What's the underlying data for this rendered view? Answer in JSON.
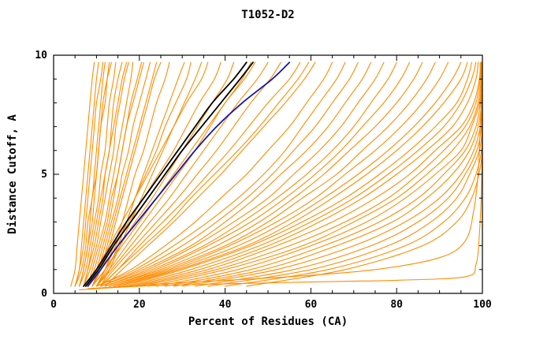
{
  "window": {
    "title": "T1052-D2"
  },
  "chart_data": {
    "type": "line",
    "title": "T1052-D2",
    "xlabel": "Percent of Residues (CA)",
    "ylabel": "Distance Cutoff, A",
    "xlim": [
      0,
      100
    ],
    "ylim": [
      0,
      10
    ],
    "x_ticks": [
      0,
      20,
      40,
      60,
      80,
      100
    ],
    "y_ticks": [
      0,
      5,
      10
    ],
    "x_minor_step": 5,
    "y_minor_step": 1,
    "grid": false,
    "legend": "none",
    "colors": {
      "models": "#ff8c00",
      "highlight_black": "#000000",
      "highlight_blue": "#1515b0",
      "frame": "#000000",
      "background": "#ffffff"
    },
    "y_samples": [
      0.3,
      1,
      2,
      3,
      4,
      5,
      6,
      7,
      8,
      9,
      9.7
    ],
    "orange_series_x": [
      [
        4,
        5,
        5.5,
        6,
        6.5,
        7,
        7.5,
        8,
        8.5,
        9,
        9.5
      ],
      [
        5,
        6,
        6.5,
        7,
        7.5,
        8,
        8.5,
        9,
        9.5,
        10,
        10.5
      ],
      [
        5,
        6.5,
        7.5,
        8,
        9,
        9.5,
        10,
        10.5,
        11,
        11.5,
        12
      ],
      [
        5,
        6,
        7,
        7.5,
        8,
        8.5,
        9,
        9.5,
        10,
        11,
        11.5
      ],
      [
        6,
        7,
        8,
        9,
        9.5,
        10,
        10.5,
        11,
        12,
        12.5,
        13
      ],
      [
        6,
        7,
        8,
        8.5,
        9,
        10,
        10.5,
        11,
        11.5,
        12.5,
        13.5
      ],
      [
        6,
        7.5,
        8.5,
        9.5,
        10.5,
        11,
        12,
        12.5,
        13,
        14,
        14.5
      ],
      [
        7,
        8,
        9,
        10,
        11,
        12,
        13,
        13.5,
        14,
        15,
        16
      ],
      [
        7,
        8,
        9.5,
        10.5,
        11.5,
        12,
        13,
        14,
        15,
        16,
        17
      ],
      [
        7,
        8.5,
        10,
        11,
        12,
        13,
        14,
        14.5,
        15.5,
        16.5,
        17.5
      ],
      [
        8,
        9,
        10.5,
        12,
        13,
        14,
        15,
        16,
        17,
        18,
        18.5
      ],
      [
        8,
        9.5,
        11,
        12.5,
        13.5,
        15,
        16,
        17,
        18.5,
        20,
        21
      ],
      [
        8,
        10,
        11.5,
        13,
        14,
        15,
        16,
        17,
        18,
        19.5,
        20.5
      ],
      [
        9,
        10.5,
        12,
        13.5,
        15,
        16,
        17.5,
        18.5,
        20,
        21.5,
        22.5
      ],
      [
        9,
        11,
        12.5,
        14,
        15.5,
        17,
        18.5,
        20,
        21.5,
        23,
        24
      ],
      [
        9,
        11,
        13,
        14.5,
        16,
        17.5,
        19,
        20.5,
        22,
        23.5,
        25
      ],
      [
        10,
        12,
        14,
        16,
        17.5,
        19,
        21,
        22.5,
        24,
        26,
        27
      ],
      [
        10,
        12,
        14.5,
        17,
        19,
        21.5,
        24,
        26,
        28.5,
        31,
        32
      ],
      [
        10,
        12.5,
        15,
        17,
        19,
        21,
        23,
        25,
        27,
        29,
        30.5
      ],
      [
        11,
        13,
        15.5,
        18,
        20.5,
        23,
        25.5,
        28,
        30.5,
        33,
        34.5
      ],
      [
        8,
        10,
        13,
        16,
        19,
        22,
        25,
        28,
        31,
        34.5,
        36
      ],
      [
        9,
        11,
        14,
        17.5,
        21,
        24.5,
        28,
        31,
        34,
        37.5,
        39
      ],
      [
        9,
        12,
        15.5,
        19,
        23,
        26.5,
        30,
        33.5,
        37,
        40.5,
        42
      ],
      [
        9,
        12,
        16,
        20,
        24,
        28,
        32,
        36,
        40,
        44,
        46
      ],
      [
        10,
        13,
        17,
        21,
        25,
        29,
        33,
        36.5,
        40,
        44.5,
        47
      ],
      [
        10,
        13.5,
        18,
        22.5,
        27,
        31,
        35,
        39,
        43,
        47.5,
        50
      ],
      [
        11,
        14,
        19,
        24,
        29,
        33.5,
        38,
        42,
        46,
        50.5,
        53
      ],
      [
        11,
        15,
        20,
        25.5,
        31,
        36,
        41,
        45.5,
        50,
        55,
        57.5
      ],
      [
        11,
        15,
        21,
        27,
        32,
        37.5,
        43,
        48,
        52.5,
        57,
        59.5
      ],
      [
        12,
        16,
        22,
        28,
        33.5,
        39,
        44,
        49,
        54,
        58.5,
        61
      ],
      [
        10,
        18,
        26,
        33,
        39,
        45,
        50,
        55,
        59,
        63,
        65
      ],
      [
        10,
        19,
        28,
        36,
        43,
        49,
        54,
        58,
        62,
        66,
        68
      ],
      [
        11,
        20,
        30,
        38,
        45,
        51,
        56,
        61,
        65,
        69,
        71
      ],
      [
        11,
        21,
        32,
        40,
        47,
        53,
        59,
        64,
        68,
        72,
        74
      ],
      [
        12,
        22,
        33,
        42,
        50,
        56,
        62,
        67,
        71,
        75,
        77
      ],
      [
        12,
        23,
        35,
        44,
        52,
        59,
        65,
        70,
        74,
        78,
        80
      ],
      [
        13,
        24,
        36,
        46,
        54,
        61,
        67,
        72,
        77,
        81,
        83
      ],
      [
        13,
        25,
        38,
        48,
        56,
        63,
        69,
        75,
        80,
        84,
        86
      ],
      [
        14,
        26,
        40,
        50,
        58,
        66,
        72,
        78,
        83,
        87,
        89
      ],
      [
        14,
        27,
        41,
        52,
        61,
        68,
        75,
        81,
        86,
        90,
        92
      ],
      [
        15,
        28,
        43,
        54,
        63,
        71,
        78,
        84,
        89,
        93,
        95
      ],
      [
        15,
        29,
        45,
        56,
        65,
        73,
        80,
        86,
        91,
        95,
        96.5
      ],
      [
        16,
        30,
        46,
        58,
        68,
        76,
        83,
        89,
        94,
        96.5,
        97.5
      ],
      [
        17,
        32,
        48,
        60,
        70,
        78,
        85,
        91,
        95,
        97.5,
        98.5
      ],
      [
        18,
        34,
        50,
        62,
        72,
        80,
        87,
        93,
        96.5,
        98.5,
        99
      ],
      [
        19,
        36,
        52,
        65,
        75,
        83,
        89,
        95,
        98,
        99.3,
        99.5
      ],
      [
        20,
        38,
        55,
        68,
        78,
        85,
        91,
        96,
        98.5,
        99.5,
        99.7
      ],
      [
        22,
        40,
        58,
        70,
        80,
        87,
        93,
        97,
        99,
        99.7,
        99.8
      ],
      [
        24,
        43,
        60,
        73,
        82,
        89,
        95,
        97.5,
        99.3,
        99.8,
        99.9
      ],
      [
        26,
        46,
        63,
        76,
        85,
        91,
        96,
        98.5,
        99.5,
        99.9,
        100
      ],
      [
        28,
        49,
        66,
        79,
        87,
        93,
        97,
        99,
        99.8,
        100,
        100
      ],
      [
        30,
        52,
        70,
        82,
        90,
        95,
        98,
        99.5,
        100,
        100,
        100
      ],
      [
        33,
        56,
        74,
        85,
        92,
        96,
        98.7,
        99.8,
        100,
        100,
        100
      ],
      [
        36,
        60,
        78,
        88,
        94,
        97,
        99.3,
        100,
        100,
        100,
        100
      ],
      [
        40,
        64,
        82,
        91,
        96,
        98.5,
        99.8,
        100,
        100,
        100,
        100
      ],
      [
        45,
        68,
        86,
        94,
        97.5,
        99.2,
        100,
        100,
        100,
        100,
        100
      ]
    ],
    "orange_series_pts": [
      [
        [
          6,
          0.15
        ],
        [
          20,
          0.3
        ],
        [
          40,
          0.4
        ],
        [
          66,
          0.5
        ],
        [
          80,
          0.55
        ],
        [
          96,
          0.7
        ],
        [
          98.5,
          1.2
        ],
        [
          99.3,
          2.5
        ],
        [
          99.8,
          4.5
        ],
        [
          100,
          7
        ],
        [
          100,
          9.7
        ]
      ],
      [
        [
          8,
          0.2
        ],
        [
          30,
          0.45
        ],
        [
          55,
          0.7
        ],
        [
          75,
          1.0
        ],
        [
          90,
          1.5
        ],
        [
          96,
          2.2
        ],
        [
          98,
          3.5
        ],
        [
          99,
          5
        ],
        [
          99.5,
          7
        ],
        [
          100,
          9.7
        ]
      ]
    ],
    "black_series_x": [
      [
        7,
        10,
        13.5,
        17,
        21,
        25,
        29,
        33,
        37,
        42,
        45
      ],
      [
        7.5,
        10.5,
        14,
        18,
        22,
        26,
        30,
        34.5,
        39,
        43.5,
        46.5
      ]
    ],
    "blue_series_x": [
      [
        8,
        11,
        15,
        19.5,
        24,
        28.5,
        33,
        38,
        44,
        51,
        55
      ]
    ]
  }
}
